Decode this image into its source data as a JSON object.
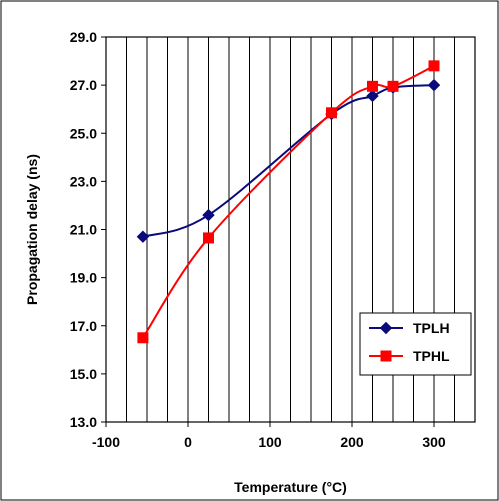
{
  "chart_data": {
    "type": "line",
    "title": "",
    "xlabel": "Temperature (°C)",
    "ylabel": "Propagation delay (ns)",
    "xlim": [
      -100,
      350
    ],
    "ylim": [
      13.0,
      29.0
    ],
    "x_ticks": [
      -100,
      0,
      100,
      200,
      300
    ],
    "x_tick_labels": [
      "-100",
      "0",
      "100",
      "200",
      "300"
    ],
    "x_minor_step": 25,
    "y_ticks": [
      13.0,
      15.0,
      17.0,
      19.0,
      21.0,
      23.0,
      25.0,
      27.0,
      29.0
    ],
    "y_tick_labels": [
      "13.0",
      "15.0",
      "17.0",
      "19.0",
      "21.0",
      "23.0",
      "25.0",
      "27.0",
      "29.0"
    ],
    "grid": "vertical",
    "legend_position": "bottom-right",
    "series": [
      {
        "name": "TPLH",
        "color": "#0a0a7a",
        "marker": "diamond",
        "x": [
          -55,
          25,
          175,
          225,
          250,
          300
        ],
        "y": [
          20.7,
          21.6,
          25.8,
          26.55,
          26.9,
          27.0
        ]
      },
      {
        "name": "TPHL",
        "color": "#ff0000",
        "marker": "square",
        "x": [
          -55,
          25,
          175,
          225,
          250,
          300
        ],
        "y": [
          16.5,
          20.65,
          25.85,
          26.95,
          26.95,
          27.8
        ]
      }
    ]
  }
}
